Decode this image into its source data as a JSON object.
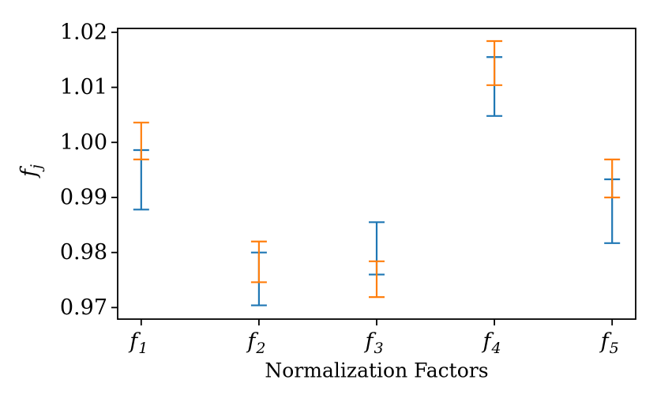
{
  "figure": {
    "background": "#ffffff",
    "axis_color": "#000000"
  },
  "chart_data": {
    "type": "errorbar",
    "title": "",
    "xlabel": "Normalization Factors",
    "ylabel_base": "f",
    "ylabel_sub": "j",
    "categories": [
      {
        "base": "f",
        "sub": "1"
      },
      {
        "base": "f",
        "sub": "2"
      },
      {
        "base": "f",
        "sub": "3"
      },
      {
        "base": "f",
        "sub": "4"
      },
      {
        "base": "f",
        "sub": "5"
      }
    ],
    "x": [
      0,
      1,
      2,
      3,
      4
    ],
    "xlim": [
      -0.2,
      4.2
    ],
    "ylim": [
      0.9679,
      1.0207
    ],
    "yticks": [
      0.97,
      0.98,
      0.99,
      1.0,
      1.01,
      1.02
    ],
    "ytick_decimals": 2,
    "grid": false,
    "legend": "none",
    "series": [
      {
        "name": "blue",
        "color": "#1f77b4",
        "points": [
          {
            "low": 0.9878,
            "high": 0.9986
          },
          {
            "low": 0.9704,
            "high": 0.98
          },
          {
            "low": 0.976,
            "high": 0.9855
          },
          {
            "low": 1.0048,
            "high": 1.0155
          },
          {
            "low": 0.9817,
            "high": 0.9933
          }
        ]
      },
      {
        "name": "orange",
        "color": "#ff7f0e",
        "points": [
          {
            "low": 0.9969,
            "high": 1.0036
          },
          {
            "low": 0.9746,
            "high": 0.982
          },
          {
            "low": 0.9719,
            "high": 0.9784
          },
          {
            "low": 1.0104,
            "high": 1.0184
          },
          {
            "low": 0.99,
            "high": 0.9969
          }
        ]
      }
    ]
  }
}
